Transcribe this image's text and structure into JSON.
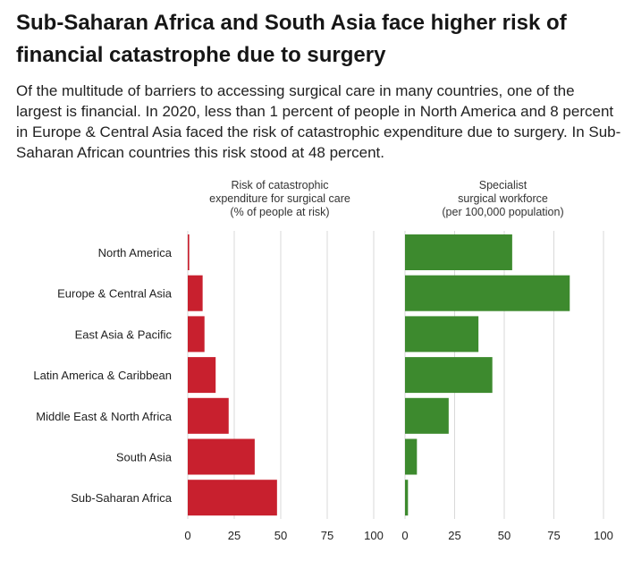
{
  "title": "Sub-Saharan Africa and South Asia face higher risk of financial catastrophe due to surgery",
  "subtitle": "Of the multitude of barriers to accessing surgical care in many countries, one of the largest is financial. In 2020, less than 1 percent of people in North America and 8 percent in Europe & Central Asia faced the risk of catastrophic expenditure due to surgery. In Sub-Saharan African countries this risk stood at 48 percent.",
  "colors": {
    "risk": "#c8202e",
    "workforce": "#3d8a2e",
    "grid": "#d9d9d9"
  },
  "chart_data": [
    {
      "type": "bar",
      "orientation": "horizontal",
      "title_lines": [
        "Risk of catastrophic",
        "expenditure for surgical care",
        "(% of people at risk)"
      ],
      "categories": [
        "North America",
        "Europe & Central Asia",
        "East Asia & Pacific",
        "Latin America & Caribbean",
        "Middle East & North Africa",
        "South Asia",
        "Sub-Saharan Africa"
      ],
      "values": [
        0.8,
        8,
        9,
        15,
        22,
        36,
        48
      ],
      "xlim": [
        0,
        100
      ],
      "ticks": [
        "0",
        "25",
        "50",
        "75",
        "100"
      ],
      "grid": true
    },
    {
      "type": "bar",
      "orientation": "horizontal",
      "title_lines": [
        "Specialist",
        "surgical workforce",
        "(per 100,000 population)"
      ],
      "categories": [
        "North America",
        "Europe & Central Asia",
        "East Asia & Pacific",
        "Latin America & Caribbean",
        "Middle East & North Africa",
        "South Asia",
        "Sub-Saharan Africa"
      ],
      "values": [
        54,
        83,
        37,
        44,
        22,
        6,
        1.5
      ],
      "xlim": [
        0,
        100
      ],
      "ticks": [
        "0",
        "25",
        "50",
        "75",
        "100"
      ],
      "grid": true
    }
  ]
}
